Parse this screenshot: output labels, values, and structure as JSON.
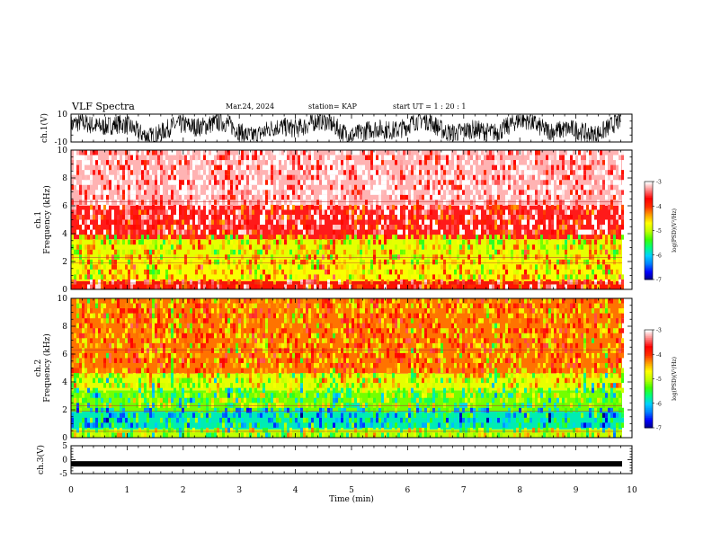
{
  "header": {
    "title": "VLF Spectra",
    "date": "Mar.24, 2024",
    "station": "station= KAP",
    "start": "start  UT =   1 : 20 : 1"
  },
  "colorbar": {
    "label": "log(PSD)(V²/Hz)",
    "ticks": [
      "-3",
      "-4",
      "-5",
      "-6",
      "-7"
    ],
    "colors": [
      "#000080",
      "#0000ff",
      "#0080ff",
      "#00d0ff",
      "#00ff80",
      "#40ff00",
      "#c0ff00",
      "#ffff00",
      "#ffa000",
      "#ff3000",
      "#ff0000",
      "#ff8080",
      "#ffffff"
    ]
  },
  "chart_data": [
    {
      "type": "line",
      "panel": "ch1 waveform",
      "ylabel": "ch.1(V)",
      "ylim": [
        -10,
        10
      ],
      "ytick_labels": [
        "10",
        "-10"
      ],
      "xlim": [
        0,
        9.8
      ],
      "x_unit": "min",
      "description_values": "broadband noise signal fluctuating mostly between -10 and 10 V"
    },
    {
      "type": "heatmap",
      "panel": "ch1 spectrogram",
      "ylabel": "ch.1\nFrequency (kHz)",
      "ylim": [
        0,
        10
      ],
      "ytick_labels": [
        "0",
        "2",
        "4",
        "6",
        "8",
        "10"
      ],
      "xlim": [
        0,
        9.8
      ],
      "bands": [
        {
          "from_khz": 0,
          "to_khz": 0.6,
          "log_psd": -3.8
        },
        {
          "from_khz": 0.6,
          "to_khz": 2.2,
          "log_psd": -4.7
        },
        {
          "from_khz": 2.2,
          "to_khz": 3.6,
          "log_psd": -4.8
        },
        {
          "from_khz": 3.6,
          "to_khz": 6.0,
          "log_psd": -3.6
        },
        {
          "from_khz": 6.0,
          "to_khz": 10.0,
          "log_psd": -3.2
        }
      ]
    },
    {
      "type": "heatmap",
      "panel": "ch2 spectrogram",
      "ylabel": "ch.2\nFrequency (kHz)",
      "ylim": [
        0,
        10
      ],
      "ytick_labels": [
        "0",
        "2",
        "4",
        "6",
        "8",
        "10"
      ],
      "xlim": [
        0,
        9.8
      ],
      "bands": [
        {
          "from_khz": 0,
          "to_khz": 0.6,
          "log_psd": -5.0
        },
        {
          "from_khz": 0.6,
          "to_khz": 1.9,
          "log_psd": -5.8
        },
        {
          "from_khz": 1.9,
          "to_khz": 3.4,
          "log_psd": -5.2
        },
        {
          "from_khz": 3.4,
          "to_khz": 4.6,
          "log_psd": -4.8
        },
        {
          "from_khz": 4.6,
          "to_khz": 10.0,
          "log_psd": -4.2
        }
      ]
    },
    {
      "type": "line",
      "panel": "ch3 waveform",
      "ylabel": "ch.3(V)",
      "ylim": [
        -5,
        5
      ],
      "ytick_labels": [
        "5",
        "0",
        "-5"
      ],
      "xlim": [
        0,
        9.8
      ],
      "level_v": -1.5,
      "xlabel": "Time (min)",
      "xtick_labels": [
        "0",
        "1",
        "2",
        "3",
        "4",
        "5",
        "6",
        "7",
        "8",
        "9",
        "10"
      ]
    }
  ]
}
